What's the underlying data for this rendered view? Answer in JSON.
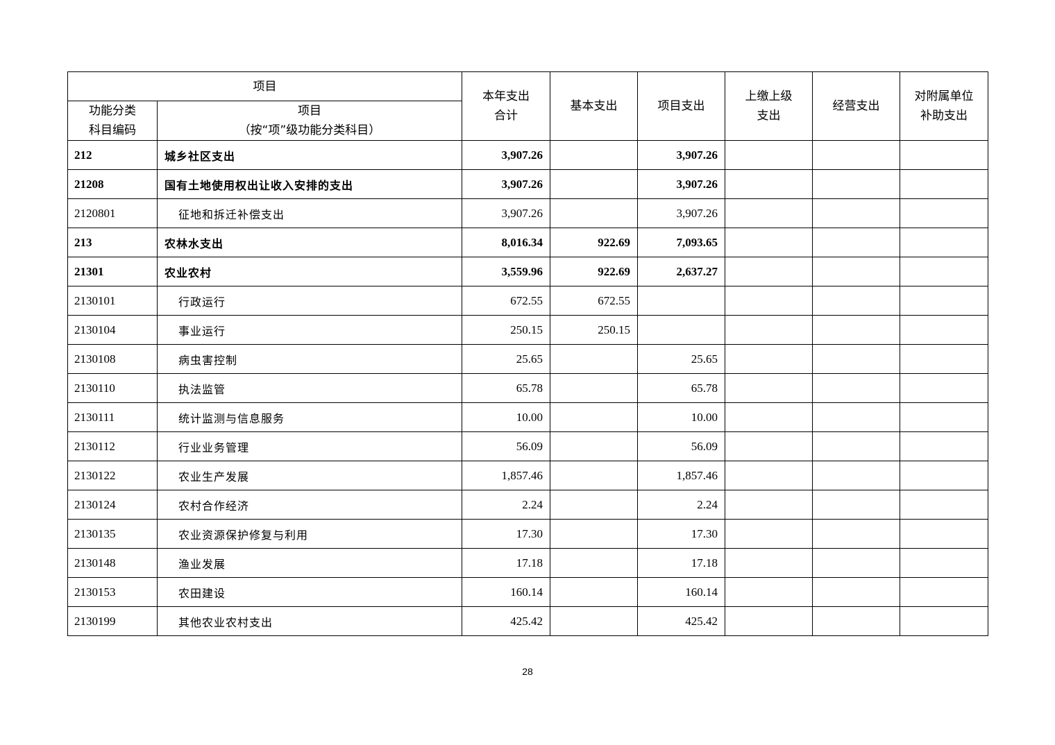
{
  "header": {
    "item_group": "项目",
    "code": "功能分类\n科目编码",
    "item_line1": "项目",
    "item_line2": "（按“项”级功能分类科目）",
    "total_line1": "本年支出",
    "total_line2": "合计",
    "basic": "基本支出",
    "project": "项目支出",
    "upper_line1": "上缴上级",
    "upper_line2": "支出",
    "business": "经营支出",
    "subsidy_line1": "对附属单位",
    "subsidy_line2": "补助支出"
  },
  "rows": [
    {
      "code": "212",
      "name": "城乡社区支出",
      "total": "3,907.26",
      "basic": "",
      "project": "3,907.26",
      "upper": "",
      "business": "",
      "subsidy": "",
      "bold": true
    },
    {
      "code": "21208",
      "name": "国有土地使用权出让收入安排的支出",
      "total": "3,907.26",
      "basic": "",
      "project": "3,907.26",
      "upper": "",
      "business": "",
      "subsidy": "",
      "bold": true
    },
    {
      "code": "2120801",
      "name": "征地和拆迁补偿支出",
      "total": "3,907.26",
      "basic": "",
      "project": "3,907.26",
      "upper": "",
      "business": "",
      "subsidy": "",
      "bold": false
    },
    {
      "code": "213",
      "name": "农林水支出",
      "total": "8,016.34",
      "basic": "922.69",
      "project": "7,093.65",
      "upper": "",
      "business": "",
      "subsidy": "",
      "bold": true
    },
    {
      "code": "21301",
      "name": "农业农村",
      "total": "3,559.96",
      "basic": "922.69",
      "project": "2,637.27",
      "upper": "",
      "business": "",
      "subsidy": "",
      "bold": true
    },
    {
      "code": "2130101",
      "name": "行政运行",
      "total": "672.55",
      "basic": "672.55",
      "project": "",
      "upper": "",
      "business": "",
      "subsidy": "",
      "bold": false
    },
    {
      "code": "2130104",
      "name": "事业运行",
      "total": "250.15",
      "basic": "250.15",
      "project": "",
      "upper": "",
      "business": "",
      "subsidy": "",
      "bold": false
    },
    {
      "code": "2130108",
      "name": "病虫害控制",
      "total": "25.65",
      "basic": "",
      "project": "25.65",
      "upper": "",
      "business": "",
      "subsidy": "",
      "bold": false
    },
    {
      "code": "2130110",
      "name": "执法监管",
      "total": "65.78",
      "basic": "",
      "project": "65.78",
      "upper": "",
      "business": "",
      "subsidy": "",
      "bold": false
    },
    {
      "code": "2130111",
      "name": "统计监测与信息服务",
      "total": "10.00",
      "basic": "",
      "project": "10.00",
      "upper": "",
      "business": "",
      "subsidy": "",
      "bold": false
    },
    {
      "code": "2130112",
      "name": "行业业务管理",
      "total": "56.09",
      "basic": "",
      "project": "56.09",
      "upper": "",
      "business": "",
      "subsidy": "",
      "bold": false
    },
    {
      "code": "2130122",
      "name": "农业生产发展",
      "total": "1,857.46",
      "basic": "",
      "project": "1,857.46",
      "upper": "",
      "business": "",
      "subsidy": "",
      "bold": false
    },
    {
      "code": "2130124",
      "name": "农村合作经济",
      "total": "2.24",
      "basic": "",
      "project": "2.24",
      "upper": "",
      "business": "",
      "subsidy": "",
      "bold": false
    },
    {
      "code": "2130135",
      "name": "农业资源保护修复与利用",
      "total": "17.30",
      "basic": "",
      "project": "17.30",
      "upper": "",
      "business": "",
      "subsidy": "",
      "bold": false
    },
    {
      "code": "2130148",
      "name": "渔业发展",
      "total": "17.18",
      "basic": "",
      "project": "17.18",
      "upper": "",
      "business": "",
      "subsidy": "",
      "bold": false
    },
    {
      "code": "2130153",
      "name": "农田建设",
      "total": "160.14",
      "basic": "",
      "project": "160.14",
      "upper": "",
      "business": "",
      "subsidy": "",
      "bold": false
    },
    {
      "code": "2130199",
      "name": "其他农业农村支出",
      "total": "425.42",
      "basic": "",
      "project": "425.42",
      "upper": "",
      "business": "",
      "subsidy": "",
      "bold": false
    }
  ],
  "page_number": "28"
}
